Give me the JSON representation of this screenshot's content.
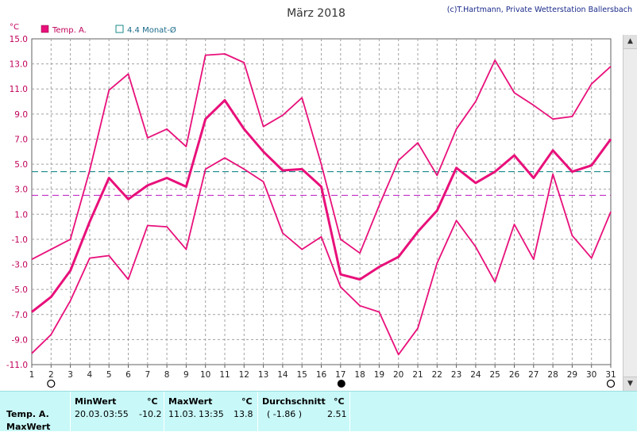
{
  "header": {
    "title": "März 2018",
    "copyright": "(c)T.Hartmann, Private Wetterstation Ballersbach"
  },
  "legend": {
    "temp_label": "Temp. A.",
    "avg_label": "4.4 Monat-Ø"
  },
  "colors": {
    "series": "#e8107a",
    "avg_line": "#1a8a8a",
    "ref_line": "#c030c8",
    "grid": "#a0a0a0",
    "axis_text": "#c0005a",
    "stats_bg": "#c8f8f8"
  },
  "chart_data": {
    "type": "line",
    "title": "März 2018",
    "y_unit": "°C",
    "xlim": [
      1,
      31
    ],
    "ylim": [
      -11,
      15
    ],
    "yticks": [
      15.0,
      13.0,
      11.0,
      9.0,
      7.0,
      5.0,
      3.0,
      1.0,
      -1.0,
      -3.0,
      -5.0,
      -7.0,
      -9.0,
      -11.0
    ],
    "ytick_labels": [
      "15.0",
      "13.0",
      "11.0",
      "9.0",
      "7.0",
      "5.0",
      "3.0",
      "1.0",
      "-1.0",
      "-3.0",
      "-5.0",
      "-7.0",
      "-9.0",
      "-11.0"
    ],
    "x": [
      1,
      2,
      3,
      4,
      5,
      6,
      7,
      8,
      9,
      10,
      11,
      12,
      13,
      14,
      15,
      16,
      17,
      18,
      19,
      20,
      21,
      22,
      23,
      24,
      25,
      26,
      27,
      28,
      29,
      30,
      31
    ],
    "grid": true,
    "series": [
      {
        "name": "Temp. A.",
        "role": "max",
        "values": [
          -2.6,
          -1.8,
          -1.0,
          4.5,
          10.9,
          12.2,
          7.1,
          7.8,
          6.4,
          13.7,
          13.8,
          13.1,
          8.0,
          8.9,
          10.3,
          5.0,
          -1.0,
          -2.1,
          1.7,
          5.3,
          6.7,
          4.1,
          7.8,
          10.0,
          13.3,
          10.7,
          9.7,
          8.6,
          8.8,
          11.4,
          12.8
        ]
      },
      {
        "name": "Temp. A.",
        "role": "mean",
        "values": [
          -6.8,
          -5.6,
          -3.5,
          0.4,
          3.9,
          2.2,
          3.3,
          3.9,
          3.2,
          8.6,
          10.1,
          7.8,
          6.0,
          4.5,
          4.6,
          3.2,
          -3.8,
          -4.2,
          -3.2,
          -2.4,
          -0.4,
          1.3,
          4.7,
          3.5,
          4.4,
          5.7,
          3.9,
          6.1,
          4.4,
          4.9,
          7.0
        ]
      },
      {
        "name": "Temp. A.",
        "role": "min",
        "values": [
          -10.1,
          -8.6,
          -5.9,
          -2.5,
          -2.3,
          -4.2,
          0.1,
          0.0,
          -1.8,
          4.6,
          5.5,
          4.6,
          3.6,
          -0.5,
          -1.8,
          -0.8,
          -4.8,
          -6.3,
          -6.8,
          -10.2,
          -8.1,
          -2.9,
          0.5,
          -1.6,
          -4.4,
          0.2,
          -2.6,
          4.2,
          -0.7,
          -2.5,
          1.2
        ]
      }
    ],
    "reference_lines": [
      {
        "name": "4.4 Monat-Ø",
        "value": 4.4,
        "style": "dashed"
      },
      {
        "value": 2.51,
        "style": "dashed"
      }
    ],
    "x_markers": {
      "new_moon_day": 17,
      "full_moon_days": [
        2,
        31
      ]
    }
  },
  "stats": {
    "row_label_1": "Temp. A.",
    "row_label_2": "MaxWert",
    "min": {
      "header": "MinWert",
      "unit": "°C",
      "date": "20.03.",
      "time": "03:55",
      "value": "-10.2"
    },
    "max": {
      "header": "MaxWert",
      "unit": "°C",
      "date": "11.03.",
      "time": "13:35",
      "value": "13.8"
    },
    "avg": {
      "header": "Durchschnitt",
      "unit": "°C",
      "extra": "( -1.86 )",
      "value": "2.51"
    }
  },
  "scrollbar": {
    "up": "▲",
    "down": "▼"
  }
}
